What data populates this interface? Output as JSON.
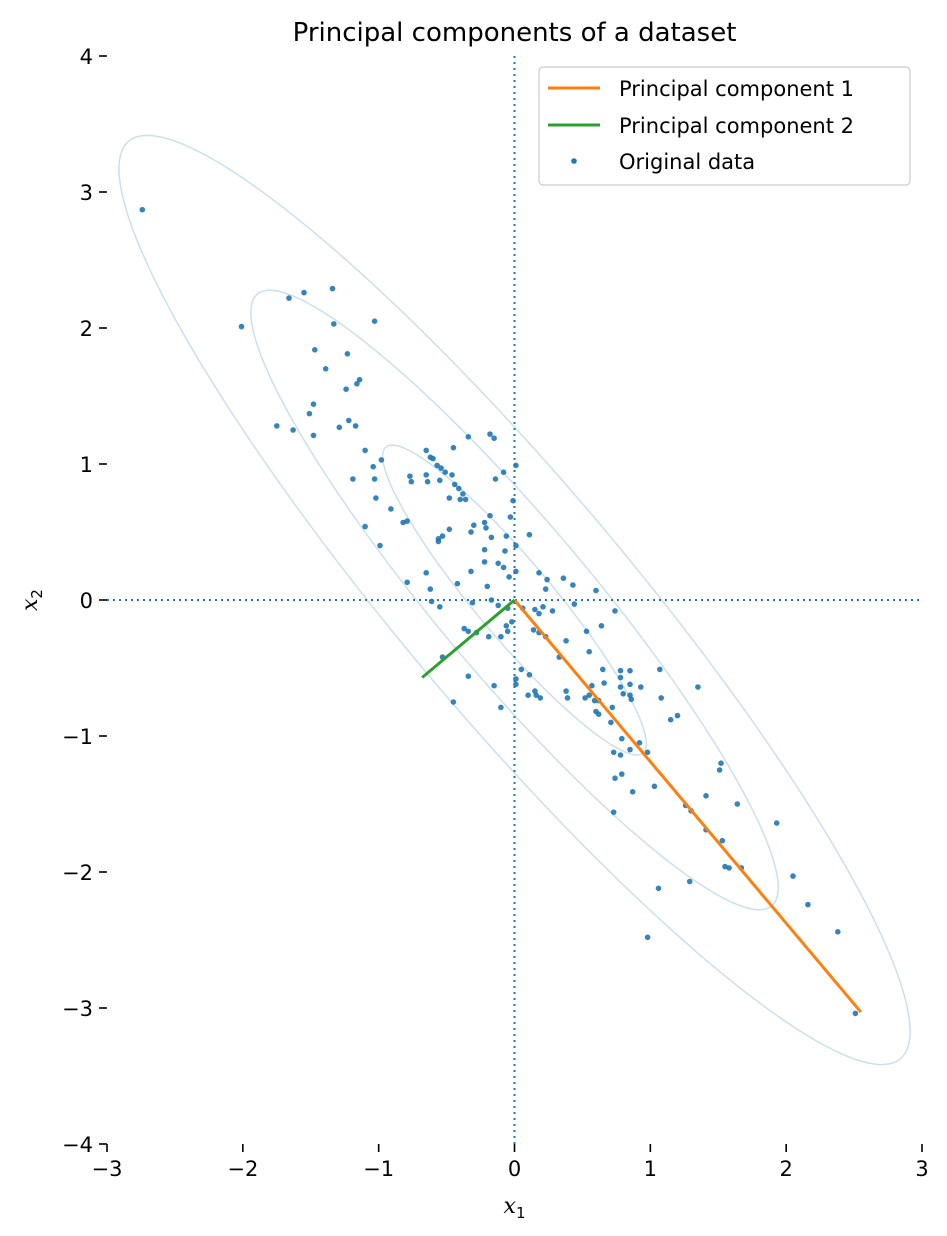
{
  "chart_data": {
    "type": "scatter",
    "title": "Principal components of a dataset",
    "xlabel": "x",
    "xlabel_sub": "1",
    "ylabel": "x",
    "ylabel_sub": "2",
    "xlim": [
      -3,
      3
    ],
    "ylim": [
      -4,
      4
    ],
    "xticks": [
      -3,
      -2,
      -1,
      0,
      1,
      2,
      3
    ],
    "xtick_labels": [
      "−3",
      "−2",
      "−1",
      "0",
      "1",
      "2",
      "3"
    ],
    "yticks": [
      -4,
      -3,
      -2,
      -1,
      0,
      1,
      2,
      3,
      4
    ],
    "ytick_labels": [
      "−4",
      "−3",
      "−2",
      "−1",
      "0",
      "1",
      "2",
      "3",
      "4"
    ],
    "grid": false,
    "legend_position": "top-right",
    "reference_lines": {
      "x": 0,
      "y": 0,
      "style": "dotted",
      "color": "#1f77b4"
    },
    "ellipses": {
      "color": "#a6cbe3",
      "center": [
        0,
        0
      ],
      "angle_deg": -49.9,
      "items": [
        {
          "semi_major": 1.47,
          "semi_minor": 0.28
        },
        {
          "semi_major": 2.94,
          "semi_minor": 0.56
        },
        {
          "semi_major": 4.41,
          "semi_minor": 0.84
        }
      ]
    },
    "series": [
      {
        "name": "Principal component 1",
        "kind": "line",
        "color": "#ff7f0e",
        "x": [
          0,
          2.55
        ],
        "y": [
          0,
          -3.03
        ]
      },
      {
        "name": "Principal component 2",
        "kind": "line",
        "color": "#2ca02c",
        "x": [
          0,
          -0.68
        ],
        "y": [
          0,
          -0.57
        ]
      },
      {
        "name": "Original data",
        "kind": "scatter",
        "color": "#1f77b4",
        "points": [
          [
            -2.74,
            2.87
          ],
          [
            -2.01,
            2.01
          ],
          [
            -1.66,
            2.22
          ],
          [
            -1.55,
            2.26
          ],
          [
            -1.34,
            2.29
          ],
          [
            -1.33,
            2.03
          ],
          [
            -1.03,
            2.05
          ],
          [
            -1.47,
            1.84
          ],
          [
            -1.23,
            1.81
          ],
          [
            -1.39,
            1.7
          ],
          [
            -1.14,
            1.62
          ],
          [
            -1.16,
            1.59
          ],
          [
            -1.24,
            1.55
          ],
          [
            -1.48,
            1.44
          ],
          [
            -1.51,
            1.37
          ],
          [
            -1.22,
            1.32
          ],
          [
            -1.29,
            1.27
          ],
          [
            -1.17,
            1.28
          ],
          [
            -1.75,
            1.28
          ],
          [
            -1.63,
            1.25
          ],
          [
            -1.48,
            1.21
          ],
          [
            -1.1,
            1.1
          ],
          [
            -0.98,
            1.03
          ],
          [
            -1.04,
            0.98
          ],
          [
            -1.03,
            0.89
          ],
          [
            -1.19,
            0.89
          ],
          [
            -1.02,
            0.75
          ],
          [
            -0.91,
            0.67
          ],
          [
            -0.82,
            0.57
          ],
          [
            -1.1,
            0.54
          ],
          [
            -0.99,
            0.4
          ],
          [
            -0.79,
            0.58
          ],
          [
            -0.77,
            0.91
          ],
          [
            -0.76,
            0.87
          ],
          [
            -0.65,
            1.1
          ],
          [
            -0.62,
            1.05
          ],
          [
            -0.6,
            1.04
          ],
          [
            -0.57,
            0.99
          ],
          [
            -0.54,
            0.97
          ],
          [
            -0.51,
            0.94
          ],
          [
            -0.46,
            0.92
          ],
          [
            -0.45,
            1.12
          ],
          [
            -0.65,
            0.92
          ],
          [
            -0.64,
            0.87
          ],
          [
            -0.55,
            0.88
          ],
          [
            -0.44,
            0.85
          ],
          [
            -0.41,
            0.82
          ],
          [
            -0.38,
            0.78
          ],
          [
            -0.36,
            0.74
          ],
          [
            -0.34,
            1.2
          ],
          [
            -0.4,
            0.74
          ],
          [
            -0.48,
            0.75
          ],
          [
            -0.48,
            0.52
          ],
          [
            -0.53,
            0.47
          ],
          [
            -0.56,
            0.45
          ],
          [
            -0.56,
            0.43
          ],
          [
            -0.3,
            0.55
          ],
          [
            -0.22,
            0.57
          ],
          [
            -0.21,
            0.53
          ],
          [
            -0.32,
            0.5
          ],
          [
            -0.18,
            1.22
          ],
          [
            -0.15,
            1.19
          ],
          [
            -0.14,
            0.89
          ],
          [
            -0.08,
            0.94
          ],
          [
            0.01,
            0.99
          ],
          [
            -0.18,
            0.62
          ],
          [
            -0.17,
            0.46
          ],
          [
            -0.06,
            0.47
          ],
          [
            -0.03,
            0.61
          ],
          [
            -0.01,
            0.73
          ],
          [
            0.11,
            0.48
          ],
          [
            -0.22,
            0.37
          ],
          [
            -0.12,
            0.27
          ],
          [
            -0.08,
            0.24
          ],
          [
            -0.07,
            0.36
          ],
          [
            0.01,
            0.4
          ],
          [
            -0.04,
            0.17
          ],
          [
            -0.79,
            0.13
          ],
          [
            -0.65,
            0.2
          ],
          [
            -0.62,
            0.08
          ],
          [
            -0.42,
            0.12
          ],
          [
            -0.32,
            0.21
          ],
          [
            -0.22,
            0.28
          ],
          [
            -0.2,
            0.1
          ],
          [
            -0.17,
            0.0
          ],
          [
            0.01,
            0.21
          ],
          [
            -0.61,
            -0.01
          ],
          [
            -0.55,
            -0.05
          ],
          [
            -0.31,
            -0.02
          ],
          [
            -0.12,
            -0.04
          ],
          [
            -0.05,
            -0.06
          ],
          [
            0.06,
            -0.06
          ],
          [
            0.15,
            -0.07
          ],
          [
            0.18,
            -0.1
          ],
          [
            0.18,
            0.2
          ],
          [
            0.24,
            0.15
          ],
          [
            0.23,
            0.08
          ],
          [
            0.28,
            -0.08
          ],
          [
            0.36,
            0.16
          ],
          [
            0.43,
            0.11
          ],
          [
            0.44,
            -0.03
          ],
          [
            0.6,
            0.07
          ],
          [
            0.21,
            -0.05
          ],
          [
            -0.37,
            -0.21
          ],
          [
            -0.34,
            -0.23
          ],
          [
            -0.28,
            -0.24
          ],
          [
            -0.19,
            -0.27
          ],
          [
            -0.1,
            -0.27
          ],
          [
            -0.05,
            -0.23
          ],
          [
            -0.06,
            -0.19
          ],
          [
            -0.02,
            -0.16
          ],
          [
            0.14,
            -0.22
          ],
          [
            0.18,
            -0.24
          ],
          [
            0.23,
            -0.27
          ],
          [
            0.33,
            -0.42
          ],
          [
            0.38,
            -0.3
          ],
          [
            0.53,
            -0.23
          ],
          [
            0.64,
            -0.19
          ],
          [
            0.74,
            -0.08
          ],
          [
            -0.53,
            -0.42
          ],
          [
            -0.34,
            -0.56
          ],
          [
            -0.45,
            -0.75
          ],
          [
            -0.15,
            -0.63
          ],
          [
            -0.1,
            -0.79
          ],
          [
            0.01,
            -0.58
          ],
          [
            0.05,
            -0.51
          ],
          [
            0.11,
            -0.55
          ],
          [
            0.01,
            -0.62
          ],
          [
            0.15,
            -0.67
          ],
          [
            0.16,
            -0.7
          ],
          [
            0.1,
            -0.7
          ],
          [
            0.19,
            -0.72
          ],
          [
            0.38,
            -0.67
          ],
          [
            0.39,
            -0.72
          ],
          [
            0.52,
            -0.72
          ],
          [
            0.55,
            -0.7
          ],
          [
            0.57,
            -0.63
          ],
          [
            0.59,
            -0.74
          ],
          [
            0.62,
            -0.74
          ],
          [
            0.66,
            -0.61
          ],
          [
            0.65,
            -0.51
          ],
          [
            0.78,
            -0.52
          ],
          [
            0.78,
            -0.57
          ],
          [
            0.78,
            -0.64
          ],
          [
            0.8,
            -0.69
          ],
          [
            0.85,
            -0.52
          ],
          [
            0.85,
            -0.62
          ],
          [
            0.85,
            -0.7
          ],
          [
            0.86,
            -0.73
          ],
          [
            0.93,
            -0.64
          ],
          [
            0.55,
            -0.38
          ],
          [
            0.6,
            -0.82
          ],
          [
            0.62,
            -0.84
          ],
          [
            0.72,
            -0.79
          ],
          [
            0.71,
            -0.9
          ],
          [
            1.07,
            -0.51
          ],
          [
            1.08,
            -0.72
          ],
          [
            1.15,
            -0.88
          ],
          [
            1.2,
            -0.85
          ],
          [
            1.35,
            -0.64
          ],
          [
            0.79,
            -1.02
          ],
          [
            0.85,
            -1.1
          ],
          [
            0.92,
            -1.05
          ],
          [
            0.73,
            -1.12
          ],
          [
            0.78,
            -1.14
          ],
          [
            0.98,
            -1.12
          ],
          [
            0.79,
            -1.28
          ],
          [
            0.74,
            -1.31
          ],
          [
            0.87,
            -1.41
          ],
          [
            0.73,
            -1.56
          ],
          [
            1.03,
            -1.37
          ],
          [
            1.26,
            -1.51
          ],
          [
            1.3,
            -1.55
          ],
          [
            1.41,
            -1.44
          ],
          [
            1.51,
            -1.25
          ],
          [
            1.52,
            -1.2
          ],
          [
            1.64,
            -1.5
          ],
          [
            1.41,
            -1.69
          ],
          [
            1.53,
            -1.77
          ],
          [
            1.55,
            -1.96
          ],
          [
            1.58,
            -1.97
          ],
          [
            1.67,
            -1.97
          ],
          [
            1.93,
            -1.64
          ],
          [
            2.05,
            -2.03
          ],
          [
            2.16,
            -2.24
          ],
          [
            2.38,
            -2.44
          ],
          [
            1.06,
            -2.12
          ],
          [
            1.29,
            -2.07
          ],
          [
            0.98,
            -2.48
          ],
          [
            2.51,
            -3.04
          ]
        ]
      }
    ]
  }
}
